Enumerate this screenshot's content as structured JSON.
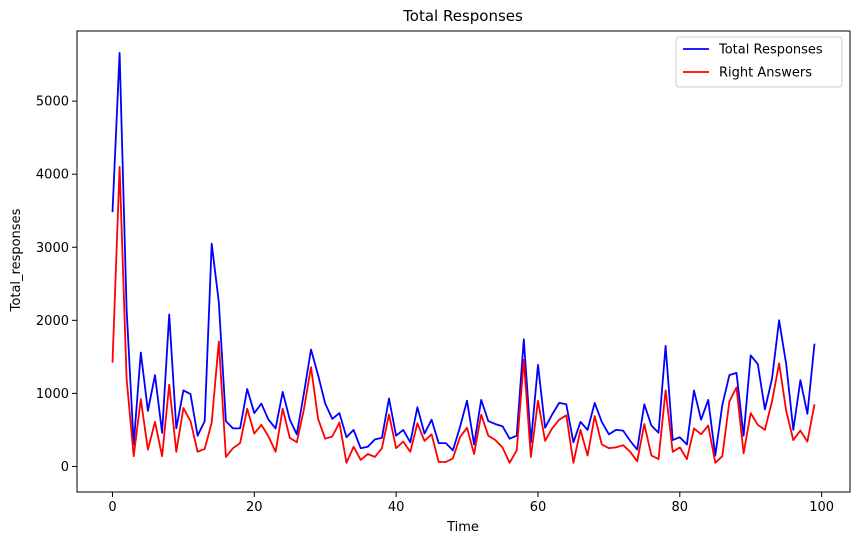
{
  "chart_data": {
    "type": "line",
    "title": "Total Responses",
    "xlabel": "Time",
    "ylabel": "Total_responses",
    "xlim": [
      -5,
      104
    ],
    "ylim": [
      -350,
      5960
    ],
    "xticks": [
      0,
      20,
      40,
      60,
      80,
      100
    ],
    "yticks": [
      0,
      1000,
      2000,
      3000,
      4000,
      5000
    ],
    "grid": false,
    "legend_position": "top-right",
    "x": [
      0,
      1,
      2,
      3,
      4,
      5,
      6,
      7,
      8,
      9,
      10,
      11,
      12,
      13,
      14,
      15,
      16,
      17,
      18,
      19,
      20,
      21,
      22,
      23,
      24,
      25,
      26,
      27,
      28,
      29,
      30,
      31,
      32,
      33,
      34,
      35,
      36,
      37,
      38,
      39,
      40,
      41,
      42,
      43,
      44,
      45,
      46,
      47,
      48,
      49,
      50,
      51,
      52,
      53,
      54,
      55,
      56,
      57,
      58,
      59,
      60,
      61,
      62,
      63,
      64,
      65,
      66,
      67,
      68,
      69,
      70,
      71,
      72,
      73,
      74,
      75,
      76,
      77,
      78,
      79,
      80,
      81,
      82,
      83,
      84,
      85,
      86,
      87,
      88,
      89,
      90,
      91,
      92,
      93,
      94,
      95,
      96,
      97,
      98,
      99
    ],
    "series": [
      {
        "name": "Total Responses",
        "color": "#0000ff",
        "values": [
          3480,
          5660,
          2150,
          300,
          1560,
          760,
          1250,
          460,
          2080,
          520,
          1040,
          990,
          420,
          620,
          3050,
          2250,
          620,
          520,
          520,
          1060,
          730,
          860,
          640,
          520,
          1020,
          640,
          440,
          1000,
          1600,
          1250,
          860,
          650,
          730,
          400,
          500,
          250,
          270,
          370,
          390,
          930,
          420,
          500,
          330,
          810,
          450,
          640,
          320,
          320,
          220,
          540,
          900,
          300,
          910,
          620,
          580,
          550,
          380,
          420,
          1740,
          330,
          1390,
          530,
          710,
          870,
          850,
          330,
          610,
          500,
          870,
          610,
          440,
          500,
          490,
          350,
          230,
          850,
          560,
          460,
          1650,
          360,
          400,
          300,
          1040,
          640,
          910,
          150,
          840,
          1250,
          1280,
          420,
          1520,
          1400,
          780,
          1200,
          2000,
          1400,
          500,
          1180,
          720,
          1680
        ]
      },
      {
        "name": "Right Answers",
        "color": "#ff0000",
        "values": [
          1420,
          4100,
          1200,
          140,
          920,
          230,
          610,
          140,
          1120,
          200,
          800,
          620,
          200,
          240,
          600,
          1710,
          130,
          250,
          320,
          790,
          450,
          570,
          410,
          200,
          790,
          390,
          330,
          780,
          1360,
          650,
          380,
          410,
          600,
          50,
          270,
          90,
          170,
          130,
          250,
          710,
          250,
          340,
          200,
          590,
          350,
          440,
          60,
          60,
          110,
          400,
          530,
          170,
          710,
          420,
          360,
          260,
          50,
          220,
          1460,
          130,
          900,
          350,
          520,
          640,
          700,
          50,
          500,
          150,
          690,
          300,
          250,
          260,
          290,
          200,
          70,
          580,
          150,
          100,
          1040,
          200,
          260,
          100,
          520,
          440,
          560,
          50,
          140,
          890,
          1080,
          180,
          730,
          570,
          500,
          890,
          1410,
          760,
          360,
          490,
          340,
          850
        ]
      }
    ]
  }
}
